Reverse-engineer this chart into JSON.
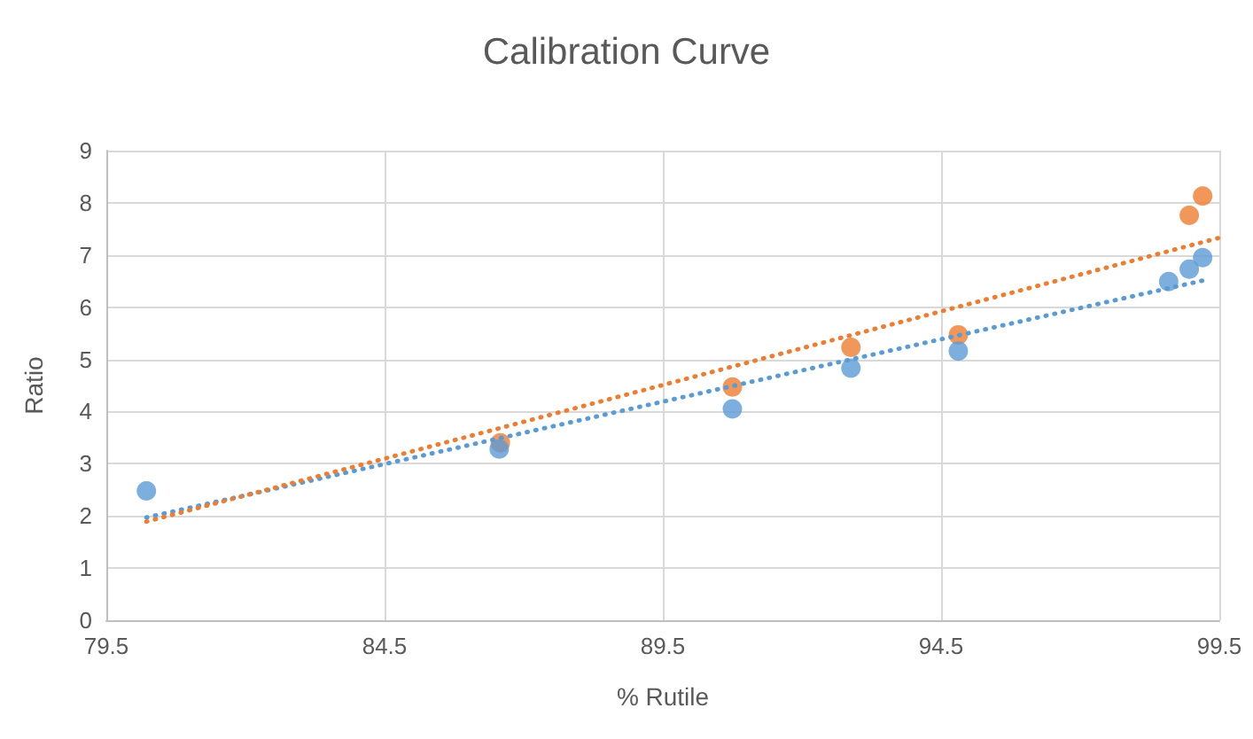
{
  "chart_data": {
    "type": "scatter",
    "title": "Calibration Curve",
    "xlabel": "% Rutile",
    "ylabel": "Ratio",
    "xlim": [
      79.5,
      99.5
    ],
    "xticks": [
      79.5,
      84.5,
      89.5,
      94.5,
      99.5
    ],
    "ylim": [
      0,
      9
    ],
    "yticks": [
      0,
      1,
      2,
      3,
      4,
      5,
      6,
      7,
      8,
      9
    ],
    "grid": true,
    "marker": "circle",
    "series": [
      {
        "color": "#5b9bd5",
        "x": [
          80.22,
          86.56,
          90.75,
          92.88,
          94.81,
          98.59,
          98.96,
          99.2
        ],
        "values": [
          2.48,
          3.28,
          4.05,
          4.83,
          5.16,
          6.49,
          6.73,
          6.95
        ]
      },
      {
        "color": "#ed7d31",
        "x": [
          86.58,
          90.75,
          92.88,
          94.81,
          98.96,
          99.2
        ],
        "values": [
          3.4,
          4.47,
          5.23,
          5.47,
          7.76,
          8.13
        ]
      },
      {
        "type": "line",
        "line_style": "dotted",
        "marker": "none",
        "color": "#5b9bd5",
        "x": [
          80.22,
          99.2
        ],
        "values": [
          1.97,
          6.51
        ]
      },
      {
        "type": "line",
        "line_style": "dotted",
        "marker": "none",
        "color": "#ed7d31",
        "x": [
          80.22,
          99.5
        ],
        "values": [
          1.89,
          7.33
        ]
      }
    ]
  }
}
